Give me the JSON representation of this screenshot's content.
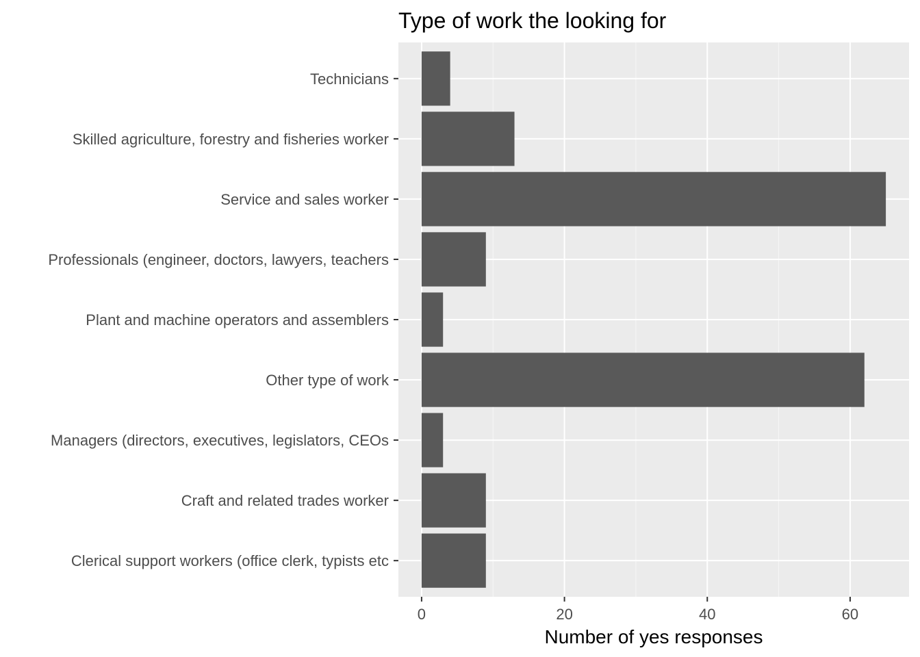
{
  "chart_data": {
    "type": "bar",
    "orientation": "horizontal",
    "title": "Type of work the looking for",
    "xlabel": "Number of yes responses",
    "ylabel": "",
    "categories": [
      "Technicians",
      "Skilled agriculture, forestry and fisheries worker",
      "Service and sales worker",
      "Professionals (engineer, doctors, lawyers, teachers",
      "Plant and machine operators and assemblers",
      "Other type of work",
      "Managers (directors, executives, legislators, CEOs ",
      "Craft and related trades worker",
      "Clerical support workers (office clerk, typists etc"
    ],
    "values": [
      4,
      13,
      65,
      9,
      3,
      62,
      3,
      9,
      9
    ],
    "xlim": [
      -3.25,
      68.25
    ],
    "xticks": [
      0,
      20,
      40,
      60
    ],
    "xtick_labels": [
      "0",
      "20",
      "40",
      "60"
    ],
    "grid": true,
    "legend": "none"
  },
  "colors": {
    "panel_background": "#ebebeb",
    "grid_major": "#ffffff",
    "grid_minor": "#f5f5f5",
    "bar_fill": "#595959",
    "tick_color": "#333333"
  }
}
